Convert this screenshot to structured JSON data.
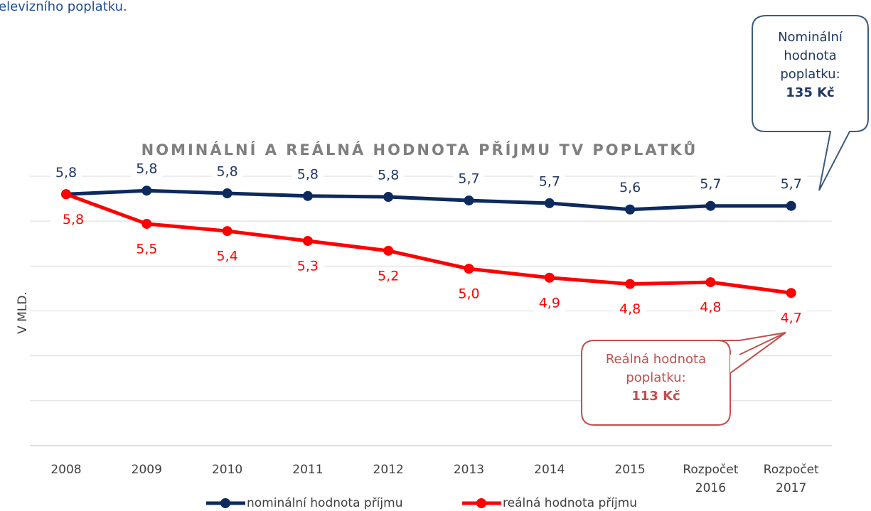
{
  "chart_data": {
    "type": "line",
    "intro_text": "elevizního poplatku.",
    "title": "NOMINÁLNÍ A REÁLNÁ HODNOTA PŘÍJMU TV POPLATKŮ",
    "y_label": "V MLD.",
    "categories": [
      "2008",
      "2009",
      "2010",
      "2011",
      "2012",
      "2013",
      "2014",
      "2015",
      "Rozpočet 2016",
      "Rozpočet 2017"
    ],
    "series": [
      {
        "name": "nominální hodnota příjmu",
        "color": "#0d2a5e",
        "values": [
          5.8,
          5.84,
          5.81,
          5.78,
          5.77,
          5.73,
          5.7,
          5.63,
          5.67,
          5.67
        ],
        "value_labels": [
          "5,8",
          "5,8",
          "5,8",
          "5,8",
          "5,8",
          "5,7",
          "5,7",
          "5,6",
          "5,7",
          "5,7"
        ]
      },
      {
        "name": "reálná hodnota příjmu",
        "color": "#ff0000",
        "values": [
          5.8,
          5.47,
          5.39,
          5.28,
          5.17,
          4.97,
          4.87,
          4.8,
          4.82,
          4.7
        ],
        "value_labels": [
          "5,8",
          "5,5",
          "5,4",
          "5,3",
          "5,2",
          "5,0",
          "4,9",
          "4,8",
          "4,8",
          "4,7"
        ]
      }
    ],
    "ylim": [
      3,
      6
    ],
    "yticks": [
      3,
      3.5,
      4,
      4.5,
      5,
      5.5,
      6
    ],
    "grid": true,
    "legend": "bottom",
    "callouts": [
      {
        "text": "Nominální hodnota poplatku:",
        "value": "135 Kč"
      },
      {
        "text": "Reálná hodnota poplatku:",
        "value": "113 Kč"
      }
    ]
  }
}
